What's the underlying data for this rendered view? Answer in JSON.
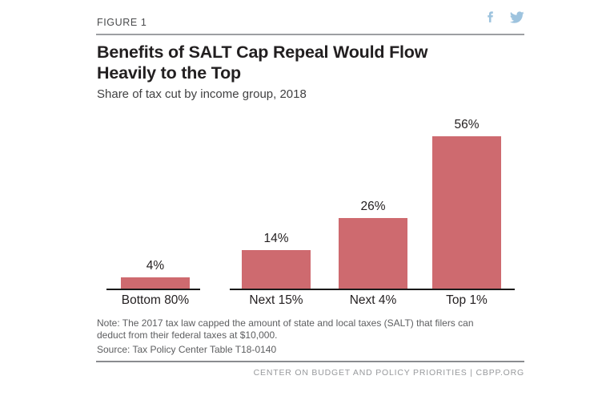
{
  "figure_label": "FIGURE 1",
  "header": {
    "title": "Benefits of SALT Cap Repeal Would Flow\nHeavily to the Top",
    "subtitle": "Share of tax cut by income group, 2018"
  },
  "social": {
    "icons": [
      "facebook-icon",
      "twitter-icon"
    ],
    "icon_color": "#9dc3de"
  },
  "chart_data": {
    "type": "bar",
    "categories": [
      "Bottom 80%",
      "Next 15%",
      "Next 4%",
      "Top 1%"
    ],
    "values": [
      4,
      14,
      26,
      56
    ],
    "value_labels": [
      "4%",
      "14%",
      "26%",
      "56%"
    ],
    "title": "Benefits of SALT Cap Repeal Would Flow Heavily to the Top",
    "subtitle": "Share of tax cut by income group, 2018",
    "xlabel": "",
    "ylabel": "",
    "ylim": [
      0,
      60
    ],
    "bar_color": "#CE6A6F",
    "axis_color": "#1a1a1a",
    "grid": false,
    "legend": false,
    "data_labels": true
  },
  "footer": {
    "note": "Note: The 2017 tax law capped the amount of state and local taxes (SALT) that filers can deduct from their federal taxes at $10,000.",
    "source": "Source: Tax Policy Center Table T18-0140",
    "credit": "CENTER ON BUDGET AND POLICY PRIORITIES | CBPP.ORG"
  }
}
